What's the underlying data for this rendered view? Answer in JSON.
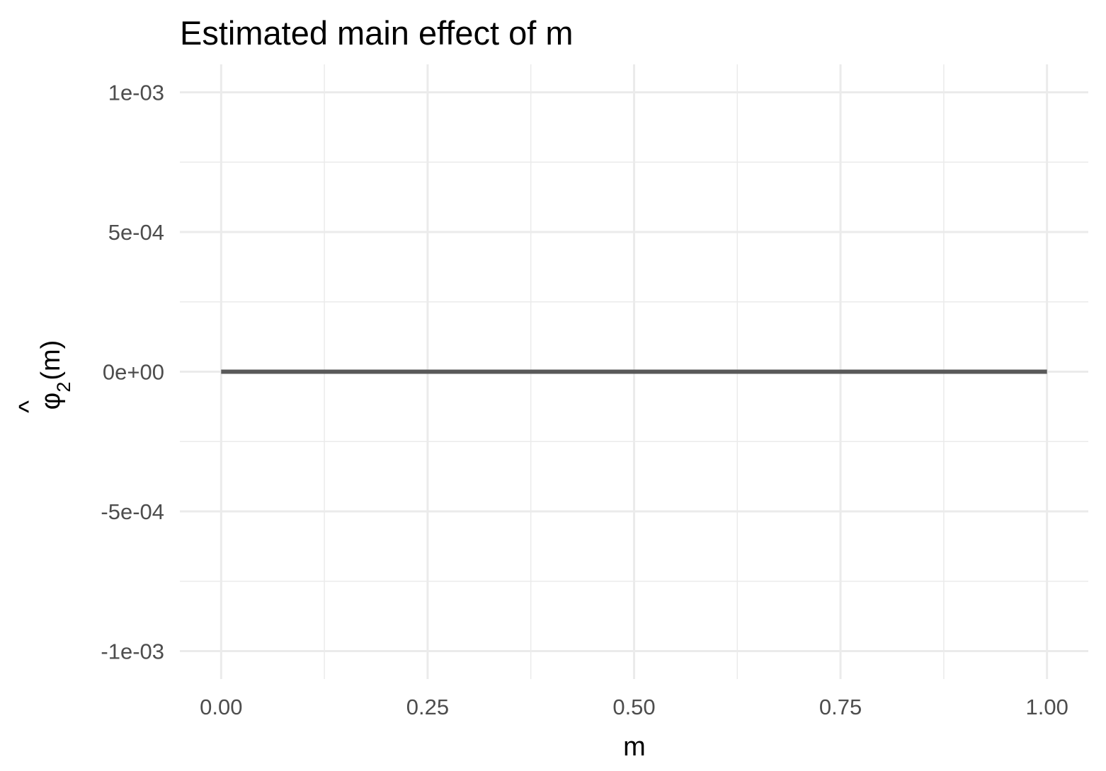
{
  "chart_data": {
    "type": "line",
    "title": "Estimated main effect of m",
    "xlabel": "m",
    "ylabel": {
      "symbol": "φ",
      "hat": "^",
      "subscript": "2",
      "argument": "(m)"
    },
    "xlim": [
      -0.05,
      1.05
    ],
    "ylim": [
      -0.0011,
      0.0011
    ],
    "x_ticks": [
      0,
      0.25,
      0.5,
      0.75,
      1
    ],
    "x_tick_labels": [
      "0.00",
      "0.25",
      "0.50",
      "0.75",
      "1.00"
    ],
    "y_ticks": [
      -0.001,
      -0.0005,
      0,
      0.0005,
      0.001
    ],
    "y_tick_labels": [
      "-1e-03",
      "-5e-04",
      "0e+00",
      "5e-04",
      "1e-03"
    ],
    "grid": true,
    "series": [
      {
        "x": [
          0,
          0.25,
          0.5,
          0.75,
          1
        ],
        "y": [
          0,
          0,
          0,
          0,
          0
        ],
        "color": "#595959"
      }
    ]
  }
}
